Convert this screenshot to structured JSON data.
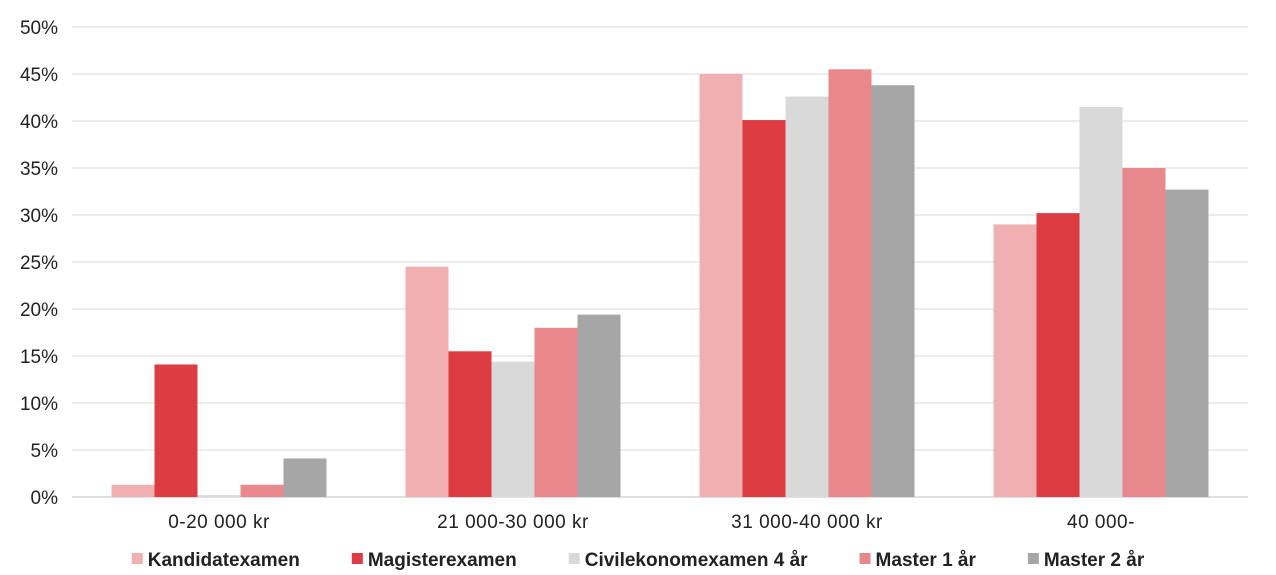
{
  "chart_data": {
    "type": "bar",
    "categories": [
      "0-20 000 kr",
      "21 000-30 000 kr",
      "31 000-40 000 kr",
      "40 000-"
    ],
    "series": [
      {
        "name": "Kandidatexamen",
        "color": "#f0b0b2",
        "values": [
          1.3,
          24.5,
          45.0,
          29.0
        ]
      },
      {
        "name": "Magisterexamen",
        "color": "#dc3b42",
        "values": [
          14.1,
          15.5,
          40.1,
          30.2
        ]
      },
      {
        "name": "Civilekonomexamen 4 år",
        "color": "#d9d9d9",
        "values": [
          0.2,
          14.4,
          42.6,
          41.5
        ]
      },
      {
        "name": "Master 1 år",
        "color": "#e8888c",
        "values": [
          1.3,
          18.0,
          45.5,
          35.0
        ]
      },
      {
        "name": "Master 2 år",
        "color": "#a6a6a6",
        "values": [
          4.1,
          19.4,
          43.8,
          32.7
        ]
      }
    ],
    "ylim": [
      0,
      50
    ],
    "yticks": [
      "0%",
      "5%",
      "10%",
      "15%",
      "20%",
      "25%",
      "30%",
      "35%",
      "40%",
      "45%",
      "50%"
    ],
    "grid": true,
    "legend": "bottom"
  }
}
